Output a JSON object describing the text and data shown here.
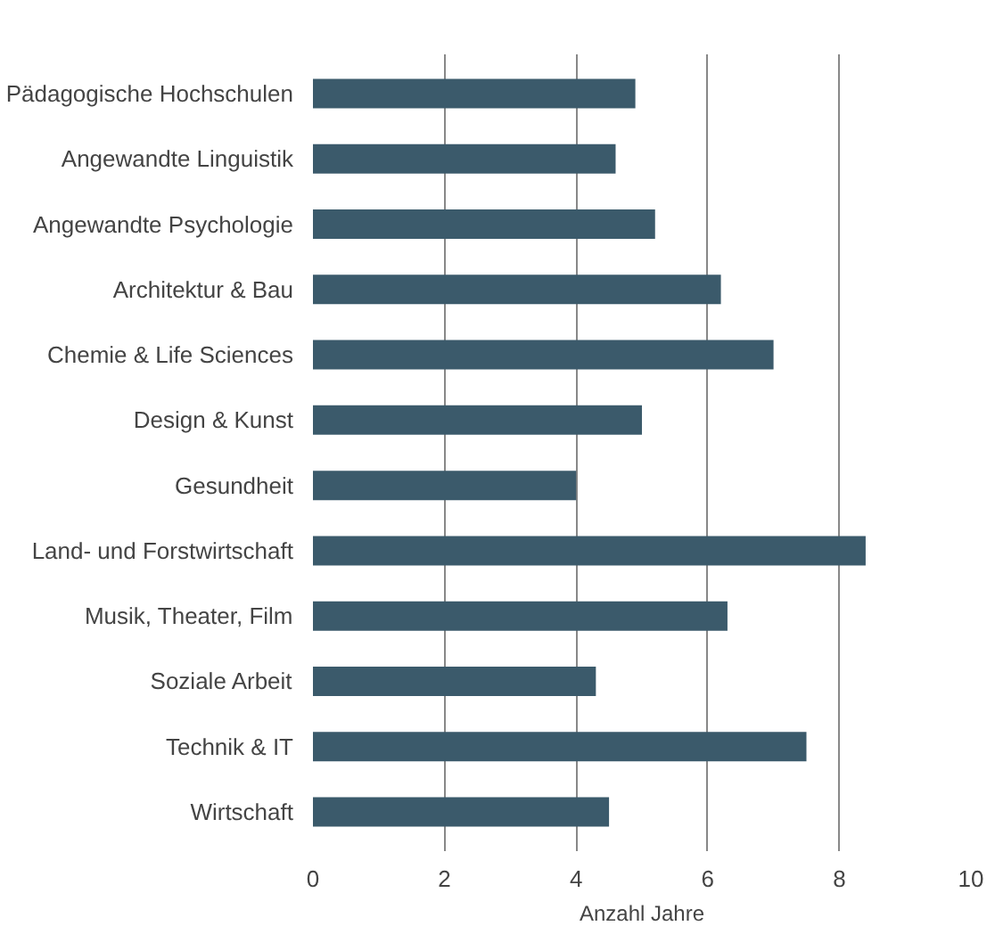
{
  "chart_data": {
    "type": "bar",
    "orientation": "horizontal",
    "xlabel": "Anzahl Jahre",
    "categories": [
      "Pädagogische Hochschulen",
      "Angewandte Linguistik",
      "Angewandte Psychologie",
      "Architektur & Bau",
      "Chemie & Life Sciences",
      "Design & Kunst",
      "Gesundheit",
      "Land- und Forstwirtschaft",
      "Musik, Theater, Film",
      "Soziale Arbeit",
      "Technik & IT",
      "Wirtschaft"
    ],
    "values": [
      4.9,
      4.6,
      5.2,
      6.2,
      7.0,
      5.0,
      4.0,
      8.4,
      6.3,
      4.3,
      7.5,
      4.5
    ],
    "color": "#3b5a6b",
    "xlim": [
      0,
      10
    ],
    "xticks": [
      0,
      2,
      4,
      6,
      8,
      10
    ],
    "grid": "x"
  }
}
